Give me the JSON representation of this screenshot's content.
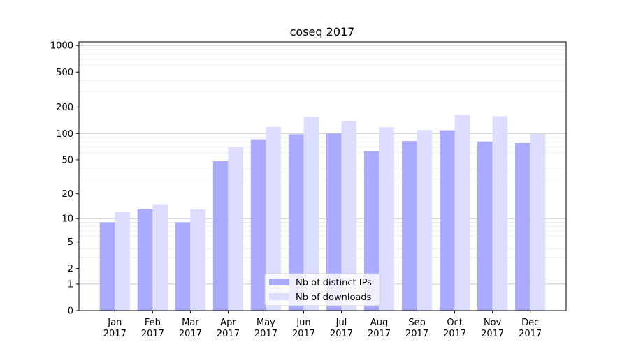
{
  "chart_data": {
    "type": "bar",
    "title": "coseq 2017",
    "xlabel": "",
    "ylabel": "",
    "y_scale": "log(1+y)",
    "ylim": [
      0,
      1100
    ],
    "y_ticks": [
      0,
      1,
      2,
      5,
      10,
      20,
      50,
      100,
      200,
      500,
      1000
    ],
    "y_tick_labels": [
      "0",
      "1",
      "2",
      "5",
      "10",
      "20",
      "50",
      "100",
      "200",
      "500",
      "1000"
    ],
    "categories": [
      [
        "Jan",
        "2017"
      ],
      [
        "Feb",
        "2017"
      ],
      [
        "Mar",
        "2017"
      ],
      [
        "Apr",
        "2017"
      ],
      [
        "May",
        "2017"
      ],
      [
        "Jun",
        "2017"
      ],
      [
        "Jul",
        "2017"
      ],
      [
        "Aug",
        "2017"
      ],
      [
        "Sep",
        "2017"
      ],
      [
        "Oct",
        "2017"
      ],
      [
        "Nov",
        "2017"
      ],
      [
        "Dec",
        "2017"
      ]
    ],
    "series": [
      {
        "name": "Nb of distinct IPs",
        "color": "#aaaaff",
        "values": [
          9,
          13,
          9,
          48,
          86,
          98,
          100,
          63,
          82,
          109,
          81,
          78
        ]
      },
      {
        "name": "Nb of downloads",
        "color": "#ddddff",
        "values": [
          12,
          15,
          13,
          70,
          119,
          155,
          139,
          118,
          110,
          162,
          158,
          99
        ]
      }
    ],
    "grid": "horizontal",
    "legend_position": "bottom-center"
  }
}
